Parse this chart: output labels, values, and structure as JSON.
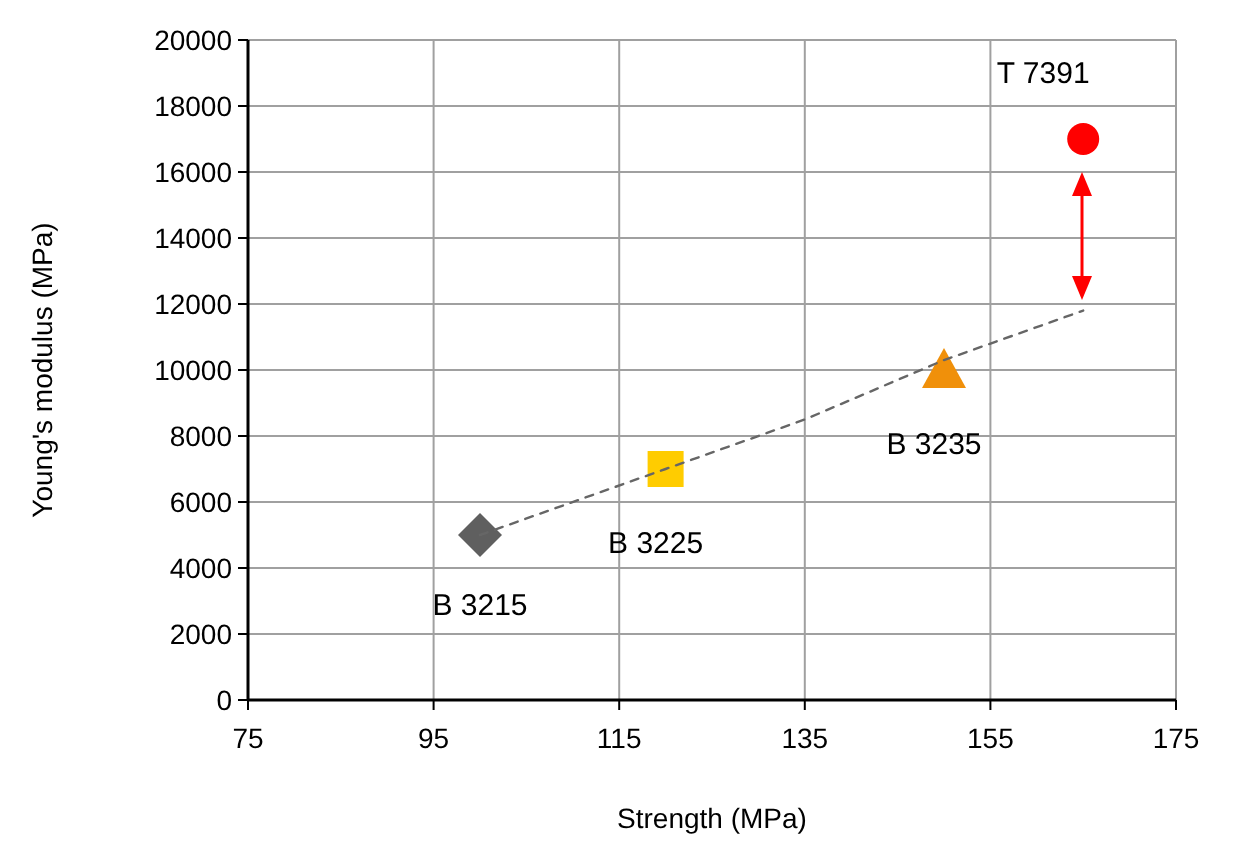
{
  "chart_data": {
    "type": "scatter",
    "xlabel": "Strength (MPa)",
    "ylabel": "Young's modulus (MPa)",
    "xlim": [
      75,
      175
    ],
    "xticks": [
      75,
      95,
      115,
      135,
      155,
      175
    ],
    "ylim": [
      0,
      20000
    ],
    "yticks": [
      0,
      2000,
      4000,
      6000,
      8000,
      10000,
      12000,
      14000,
      16000,
      18000,
      20000
    ],
    "grid": true,
    "legend": false,
    "series": [
      {
        "name": "B 3215",
        "color": "#5f5f5f",
        "marker": "diamond",
        "x": [
          100
        ],
        "values": [
          5000
        ]
      },
      {
        "name": "B 3225",
        "color": "#ffcc00",
        "marker": "square",
        "x": [
          120
        ],
        "values": [
          7000
        ]
      },
      {
        "name": "B 3235",
        "color": "#f0900a",
        "marker": "triangle",
        "x": [
          150
        ],
        "values": [
          10000
        ]
      },
      {
        "name": "T 7391",
        "color": "#ff0000",
        "marker": "circle",
        "x": [
          165
        ],
        "values": [
          17000
        ]
      },
      {
        "type": "line",
        "color": "#666666",
        "line_style": "dashed",
        "x": [
          100,
          120,
          135,
          150,
          165
        ],
        "values": [
          5000,
          7000,
          8500,
          10300,
          11800
        ]
      }
    ]
  }
}
